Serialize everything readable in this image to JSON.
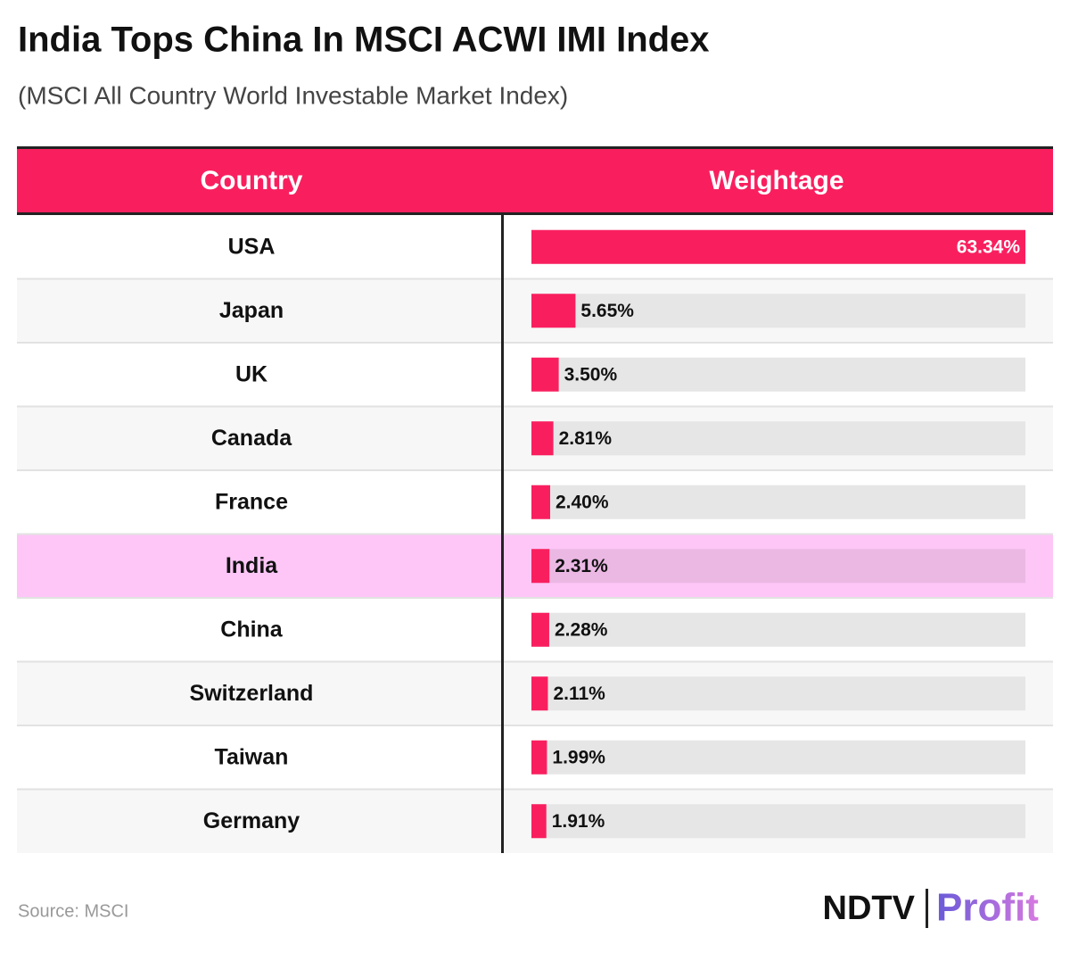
{
  "chart_data": {
    "type": "bar",
    "title": "India Tops China In MSCI ACWI IMI Index",
    "subtitle": "(MSCI All Country World Investable Market Index)",
    "columns": [
      "Country",
      "Weightage"
    ],
    "categories": [
      "USA",
      "Japan",
      "UK",
      "Canada",
      "France",
      "India",
      "China",
      "Switzerland",
      "Taiwan",
      "Germany"
    ],
    "values": [
      63.34,
      5.65,
      3.5,
      2.81,
      2.4,
      2.31,
      2.28,
      2.11,
      1.99,
      1.91
    ],
    "value_labels": [
      "63.34%",
      "5.65%",
      "3.50%",
      "2.81%",
      "2.40%",
      "2.31%",
      "2.28%",
      "2.11%",
      "1.99%",
      "1.91%"
    ],
    "xlim": [
      0,
      63.34
    ],
    "color": "#f91f5f",
    "highlight": "India",
    "source": "Source: MSCI",
    "logo": [
      "NDTV",
      "Profit"
    ]
  }
}
